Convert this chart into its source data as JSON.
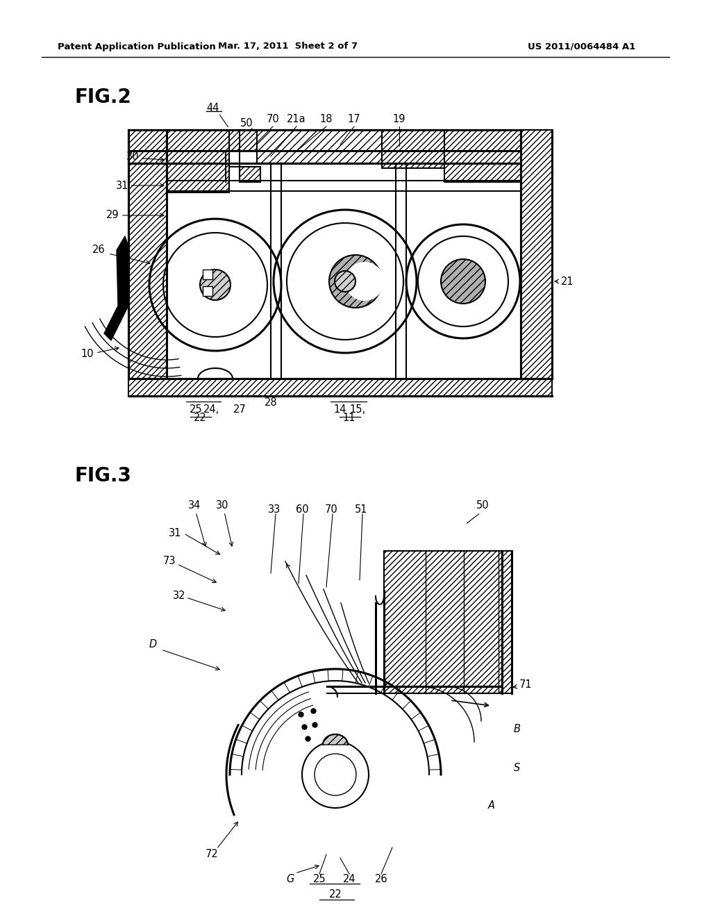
{
  "background_color": "#ffffff",
  "header_left": "Patent Application Publication",
  "header_center": "Mar. 17, 2011  Sheet 2 of 7",
  "header_right": "US 2011/0064484 A1",
  "fig2_label": "FIG.2",
  "fig3_label": "FIG.3",
  "line_color": "#000000"
}
